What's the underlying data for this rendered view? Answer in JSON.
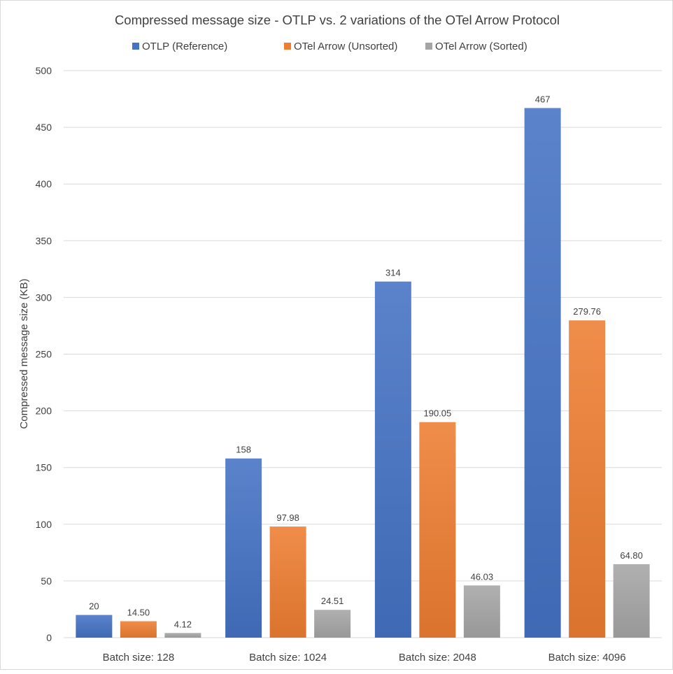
{
  "chart_data": {
    "type": "bar",
    "title": "Compressed message size - OTLP vs. 2 variations of the OTel Arrow Protocol",
    "xlabel": "",
    "ylabel": "Compressed message size (KB)",
    "ylim": [
      0,
      500
    ],
    "yticks": [
      0,
      50,
      100,
      150,
      200,
      250,
      300,
      350,
      400,
      450,
      500
    ],
    "grid": true,
    "legend_position": "top",
    "categories": [
      "Batch size: 128",
      "Batch size: 1024",
      "Batch size: 2048",
      "Batch size: 4096"
    ],
    "series": [
      {
        "name": "OTLP (Reference)",
        "color": "#4472C4",
        "values": [
          20,
          158,
          314,
          467
        ],
        "labels": [
          "20",
          "158",
          "314",
          "467"
        ]
      },
      {
        "name": "OTel Arrow (Unsorted)",
        "color": "#ED7D31",
        "values": [
          14.5,
          97.98,
          190.05,
          279.76
        ],
        "labels": [
          "14.50",
          "97.98",
          "190.05",
          "279.76"
        ]
      },
      {
        "name": "OTel Arrow (Sorted)",
        "color": "#A5A5A5",
        "values": [
          4.12,
          24.51,
          46.03,
          64.8
        ],
        "labels": [
          "4.12",
          "24.51",
          "46.03",
          "64.80"
        ]
      }
    ]
  }
}
